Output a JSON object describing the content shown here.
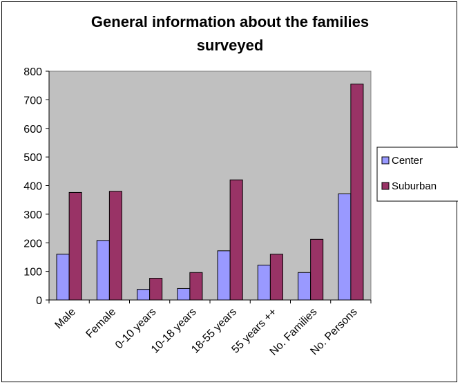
{
  "chart_data": {
    "type": "bar",
    "title": "General information about the families surveyed",
    "title_lines": [
      "General information about the families",
      "surveyed"
    ],
    "categories": [
      "Male",
      "Female",
      "0-10 years",
      "10-18 years",
      "18-55 years",
      "55 years ++",
      "No. Families",
      "No. Persons"
    ],
    "series": [
      {
        "name": "Center",
        "color": "#9999FF",
        "values": [
          160,
          208,
          37,
          40,
          172,
          122,
          96,
          371
        ]
      },
      {
        "name": "Suburban",
        "color": "#993366",
        "values": [
          376,
          380,
          76,
          96,
          420,
          160,
          212,
          755
        ]
      }
    ],
    "ylim": [
      0,
      800
    ],
    "yticks": [
      0,
      100,
      200,
      300,
      400,
      500,
      600,
      700,
      800
    ],
    "plot_background": "#C0C0C0",
    "grid": false,
    "legend_position": "right"
  }
}
